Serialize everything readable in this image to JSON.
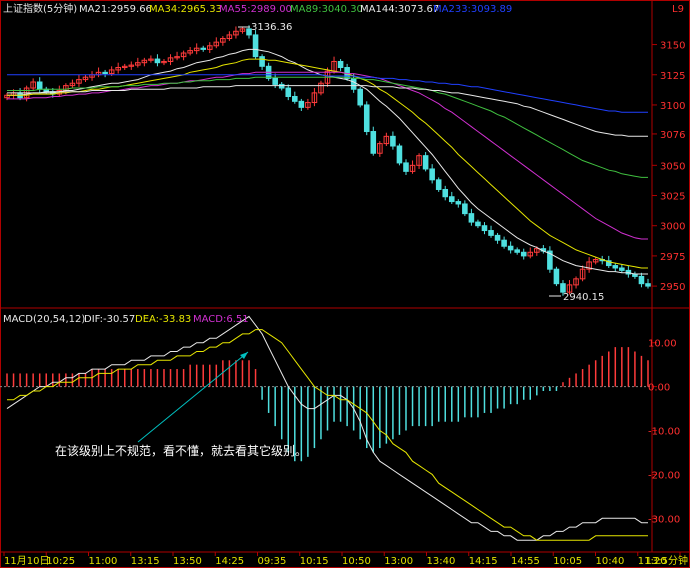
{
  "colors": {
    "bg": "#000000",
    "frame": "#b00000",
    "grid": "#7a0000",
    "up": "#ff3b3b",
    "down": "#4fe0e0",
    "white": "#e8e8e8",
    "yellow": "#e6e600",
    "purple": "#d030d0",
    "green": "#40c040",
    "blue": "#2040ff",
    "axisText": "#ff3030",
    "timeText": "#e0e000",
    "annotation": "#00c0c0"
  },
  "header": {
    "name": "上证指数(5分钟)",
    "ma21": "MA21:2959.66",
    "ma34": "MA34:2965.33",
    "ma55": "MA55:2989.00",
    "ma89": "MA89:3040.30",
    "ma144": "MA144:3073.67",
    "ma233": "MA233:3093.89",
    "corner_mark": "L9"
  },
  "macd_header": {
    "name": "MACD(20,54,12)",
    "dif": "DIF:-30.57",
    "dea": "DEA:-33.83",
    "macd": "MACD:6.51"
  },
  "annotations": {
    "high_label": "3136.36",
    "low_label": "2940.15",
    "note": "在该级别上不规范，看不懂，就去看其它级别。"
  },
  "chart_data": [
    {
      "type": "candlestick",
      "title": "上证指数(5分钟)",
      "y_ticks": [
        "3150",
        "3125",
        "3100",
        "3076",
        "3050",
        "3025",
        "3000",
        "2975",
        "2950"
      ],
      "y_tick_values": [
        3150,
        3125,
        3100,
        3076,
        3050,
        3025,
        3000,
        2975,
        2950
      ],
      "ylim": [
        2936,
        3172
      ],
      "high": 3136.36,
      "low": 2940.15,
      "close": [
        3108,
        3110,
        3106,
        3114,
        3119,
        3113,
        3111,
        3109,
        3112,
        3116,
        3118,
        3121,
        3123,
        3125,
        3127,
        3126,
        3129,
        3131,
        3132,
        3133,
        3135,
        3137,
        3138,
        3135,
        3136,
        3139,
        3140,
        3143,
        3145,
        3147,
        3146,
        3149,
        3152,
        3155,
        3158,
        3161,
        3163,
        3158,
        3140,
        3132,
        3122,
        3117,
        3114,
        3107,
        3103,
        3098,
        3102,
        3110,
        3118,
        3128,
        3136,
        3131,
        3122,
        3113,
        3100,
        3078,
        3060,
        3068,
        3074,
        3066,
        3052,
        3045,
        3050,
        3058,
        3047,
        3038,
        3030,
        3024,
        3020,
        3018,
        3010,
        3003,
        3000,
        2996,
        2992,
        2988,
        2983,
        2980,
        2978,
        2975,
        2978,
        2981,
        2979,
        2964,
        2952,
        2945,
        2951,
        2956,
        2964,
        2970,
        2972,
        2971,
        2967,
        2965,
        2963,
        2960,
        2958,
        2952,
        2950
      ],
      "ma21": [
        3108,
        3108,
        3108,
        3109,
        3110,
        3110,
        3110,
        3110,
        3111,
        3112,
        3112,
        3113,
        3114,
        3115,
        3116,
        3117,
        3118,
        3118,
        3119,
        3120,
        3121,
        3123,
        3125,
        3126,
        3127,
        3128,
        3130,
        3131,
        3133,
        3135,
        3136,
        3137,
        3139,
        3140,
        3142,
        3143,
        3145,
        3146,
        3146,
        3145,
        3144,
        3142,
        3140,
        3137,
        3135,
        3132,
        3129,
        3127,
        3125,
        3124,
        3123,
        3122,
        3121,
        3119,
        3116,
        3113,
        3108,
        3103,
        3099,
        3094,
        3089,
        3083,
        3077,
        3071,
        3065,
        3059,
        3052,
        3045,
        3038,
        3031,
        3025,
        3019,
        3014,
        3010,
        3006,
        3002,
        2998,
        2994,
        2990,
        2987,
        2984,
        2982,
        2979,
        2977,
        2974,
        2971,
        2969,
        2967,
        2966,
        2965,
        2964,
        2963,
        2962,
        2962,
        2961,
        2961,
        2960,
        2960,
        2960
      ],
      "ma34": [
        3108,
        3108,
        3108,
        3108,
        3109,
        3109,
        3109,
        3109,
        3110,
        3110,
        3111,
        3111,
        3112,
        3113,
        3113,
        3114,
        3115,
        3115,
        3116,
        3117,
        3118,
        3119,
        3120,
        3121,
        3122,
        3123,
        3124,
        3125,
        3127,
        3128,
        3129,
        3130,
        3131,
        3133,
        3134,
        3135,
        3137,
        3138,
        3138,
        3138,
        3137,
        3137,
        3136,
        3135,
        3134,
        3133,
        3132,
        3131,
        3130,
        3129,
        3128,
        3127,
        3126,
        3124,
        3122,
        3120,
        3117,
        3113,
        3110,
        3106,
        3102,
        3098,
        3094,
        3089,
        3085,
        3080,
        3075,
        3070,
        3065,
        3059,
        3054,
        3049,
        3044,
        3039,
        3034,
        3029,
        3024,
        3019,
        3014,
        3009,
        3004,
        3000,
        2996,
        2992,
        2989,
        2986,
        2983,
        2980,
        2978,
        2976,
        2974,
        2972,
        2970,
        2969,
        2968,
        2967,
        2966,
        2965,
        2965
      ],
      "ma55": [
        3105,
        3105,
        3105,
        3105,
        3106,
        3106,
        3106,
        3107,
        3107,
        3108,
        3108,
        3109,
        3109,
        3110,
        3110,
        3111,
        3112,
        3112,
        3113,
        3114,
        3114,
        3115,
        3116,
        3116,
        3117,
        3118,
        3118,
        3119,
        3120,
        3120,
        3121,
        3122,
        3123,
        3123,
        3124,
        3125,
        3126,
        3126,
        3127,
        3127,
        3127,
        3127,
        3127,
        3127,
        3127,
        3127,
        3127,
        3127,
        3127,
        3127,
        3127,
        3127,
        3126,
        3126,
        3125,
        3124,
        3123,
        3122,
        3120,
        3118,
        3116,
        3114,
        3112,
        3110,
        3107,
        3104,
        3101,
        3097,
        3094,
        3090,
        3086,
        3082,
        3078,
        3074,
        3070,
        3066,
        3062,
        3058,
        3054,
        3050,
        3046,
        3042,
        3038,
        3034,
        3030,
        3026,
        3022,
        3018,
        3014,
        3010,
        3006,
        3003,
        3000,
        2997,
        2994,
        2992,
        2990,
        2989,
        2989
      ],
      "ma89": [
        3112,
        3112,
        3112,
        3112,
        3112,
        3113,
        3113,
        3113,
        3113,
        3113,
        3114,
        3114,
        3114,
        3114,
        3115,
        3115,
        3115,
        3115,
        3116,
        3116,
        3116,
        3117,
        3117,
        3117,
        3118,
        3118,
        3118,
        3119,
        3119,
        3120,
        3120,
        3120,
        3121,
        3121,
        3121,
        3122,
        3122,
        3122,
        3123,
        3123,
        3123,
        3123,
        3123,
        3123,
        3123,
        3123,
        3123,
        3123,
        3123,
        3123,
        3123,
        3123,
        3123,
        3122,
        3122,
        3121,
        3121,
        3120,
        3119,
        3118,
        3117,
        3116,
        3115,
        3114,
        3113,
        3112,
        3110,
        3109,
        3107,
        3105,
        3103,
        3101,
        3099,
        3097,
        3095,
        3092,
        3090,
        3087,
        3084,
        3081,
        3078,
        3075,
        3072,
        3069,
        3066,
        3063,
        3060,
        3057,
        3054,
        3052,
        3050,
        3048,
        3046,
        3045,
        3043,
        3042,
        3041,
        3040,
        3040
      ],
      "ma144": [
        3110,
        3110,
        3110,
        3110,
        3110,
        3110,
        3111,
        3111,
        3111,
        3111,
        3111,
        3111,
        3111,
        3112,
        3112,
        3112,
        3112,
        3112,
        3112,
        3113,
        3113,
        3113,
        3113,
        3113,
        3113,
        3114,
        3114,
        3114,
        3114,
        3114,
        3115,
        3115,
        3115,
        3115,
        3115,
        3116,
        3116,
        3116,
        3116,
        3116,
        3116,
        3116,
        3116,
        3116,
        3116,
        3116,
        3116,
        3116,
        3116,
        3116,
        3116,
        3116,
        3116,
        3116,
        3116,
        3116,
        3115,
        3115,
        3115,
        3115,
        3114,
        3114,
        3114,
        3113,
        3113,
        3112,
        3112,
        3111,
        3110,
        3110,
        3109,
        3108,
        3107,
        3106,
        3105,
        3104,
        3103,
        3102,
        3101,
        3099,
        3098,
        3096,
        3094,
        3092,
        3090,
        3088,
        3086,
        3084,
        3082,
        3080,
        3078,
        3077,
        3076,
        3075,
        3075,
        3074,
        3074,
        3074,
        3074
      ],
      "ma233": [
        3125,
        3125,
        3125,
        3125,
        3125,
        3125,
        3125,
        3125,
        3125,
        3125,
        3125,
        3125,
        3125,
        3125,
        3125,
        3125,
        3125,
        3125,
        3125,
        3125,
        3125,
        3125,
        3125,
        3125,
        3125,
        3125,
        3125,
        3125,
        3125,
        3125,
        3125,
        3125,
        3125,
        3125,
        3125,
        3125,
        3125,
        3125,
        3125,
        3125,
        3125,
        3125,
        3125,
        3125,
        3125,
        3125,
        3125,
        3125,
        3125,
        3124,
        3124,
        3124,
        3124,
        3124,
        3123,
        3123,
        3123,
        3122,
        3122,
        3122,
        3121,
        3121,
        3120,
        3120,
        3119,
        3119,
        3118,
        3118,
        3117,
        3117,
        3116,
        3115,
        3115,
        3114,
        3113,
        3112,
        3111,
        3110,
        3109,
        3108,
        3107,
        3106,
        3105,
        3104,
        3103,
        3102,
        3101,
        3100,
        3099,
        3098,
        3097,
        3096,
        3095,
        3095,
        3094,
        3094,
        3094,
        3094,
        3094
      ]
    },
    {
      "type": "macd",
      "title": "MACD(20,54,12)",
      "y_ticks": [
        "10.00",
        "0.00",
        "-10.00",
        "-20.00",
        "-30.00"
      ],
      "y_tick_values": [
        10,
        0,
        -10,
        -20,
        -30
      ],
      "ylim": [
        -37,
        17
      ],
      "x_ticks": [
        "11月10日",
        "10:25",
        "11:00",
        "13:15",
        "13:50",
        "14:25",
        "09:35",
        "10:15",
        "10:50",
        "13:00",
        "13:40",
        "14:15",
        "14:55",
        "10:05",
        "10:40",
        "11:20",
        "13:5分钟"
      ],
      "dif": [
        -5,
        -4,
        -3,
        -2,
        -1,
        0,
        0,
        1,
        1,
        2,
        2,
        3,
        3,
        4,
        4,
        4,
        5,
        5,
        5,
        6,
        6,
        6,
        7,
        7,
        7,
        8,
        8,
        9,
        9,
        10,
        10,
        11,
        11,
        12,
        13,
        14,
        15,
        16,
        14,
        12,
        9,
        6,
        3,
        0,
        -2,
        -4,
        -5,
        -5,
        -4,
        -3,
        -2,
        -2,
        -3,
        -5,
        -8,
        -12,
        -15,
        -17,
        -18,
        -19,
        -20,
        -21,
        -22,
        -23,
        -24,
        -25,
        -26,
        -27,
        -28,
        -29,
        -30,
        -31,
        -31,
        -32,
        -33,
        -33,
        -34,
        -34,
        -35,
        -35,
        -35,
        -35,
        -34,
        -34,
        -33,
        -33,
        -32,
        -32,
        -31,
        -31,
        -31,
        -30,
        -30,
        -30,
        -30,
        -30,
        -30,
        -31,
        -31
      ],
      "dea": [
        -3,
        -3,
        -2,
        -2,
        -1,
        -1,
        0,
        0,
        1,
        1,
        1,
        2,
        2,
        2,
        3,
        3,
        3,
        4,
        4,
        4,
        5,
        5,
        5,
        6,
        6,
        6,
        7,
        7,
        7,
        8,
        8,
        9,
        9,
        10,
        10,
        11,
        12,
        12,
        13,
        13,
        12,
        11,
        10,
        8,
        6,
        4,
        2,
        0,
        -1,
        -2,
        -2,
        -3,
        -3,
        -4,
        -5,
        -6,
        -8,
        -10,
        -11,
        -13,
        -14,
        -15,
        -17,
        -18,
        -19,
        -20,
        -22,
        -23,
        -24,
        -25,
        -26,
        -27,
        -28,
        -29,
        -30,
        -31,
        -32,
        -32,
        -33,
        -34,
        -34,
        -35,
        -35,
        -35,
        -35,
        -35,
        -35,
        -35,
        -35,
        -35,
        -34,
        -34,
        -34,
        -34,
        -34,
        -34,
        -34,
        -34,
        -34
      ],
      "macd": [
        3,
        3,
        3,
        3,
        3,
        3,
        3,
        3,
        3,
        3,
        3,
        3,
        3,
        4,
        4,
        4,
        4,
        4,
        4,
        4,
        4,
        4,
        4,
        4,
        4,
        4,
        4,
        4,
        5,
        5,
        5,
        5,
        5,
        6,
        6,
        6,
        6,
        6,
        4,
        -3,
        -6,
        -9,
        -12,
        -15,
        -17,
        -17,
        -16,
        -14,
        -12,
        -10,
        -8,
        -8,
        -9,
        -10,
        -12,
        -14,
        -15,
        -14,
        -13,
        -12,
        -11,
        -10,
        -9,
        -9,
        -9,
        -9,
        -8,
        -8,
        -8,
        -8,
        -7,
        -7,
        -7,
        -6,
        -6,
        -5,
        -5,
        -4,
        -4,
        -3,
        -3,
        -2,
        -1,
        -1,
        -1,
        1,
        2,
        3,
        4,
        5,
        6,
        7,
        8,
        9,
        9,
        9,
        8,
        7,
        6
      ]
    }
  ]
}
